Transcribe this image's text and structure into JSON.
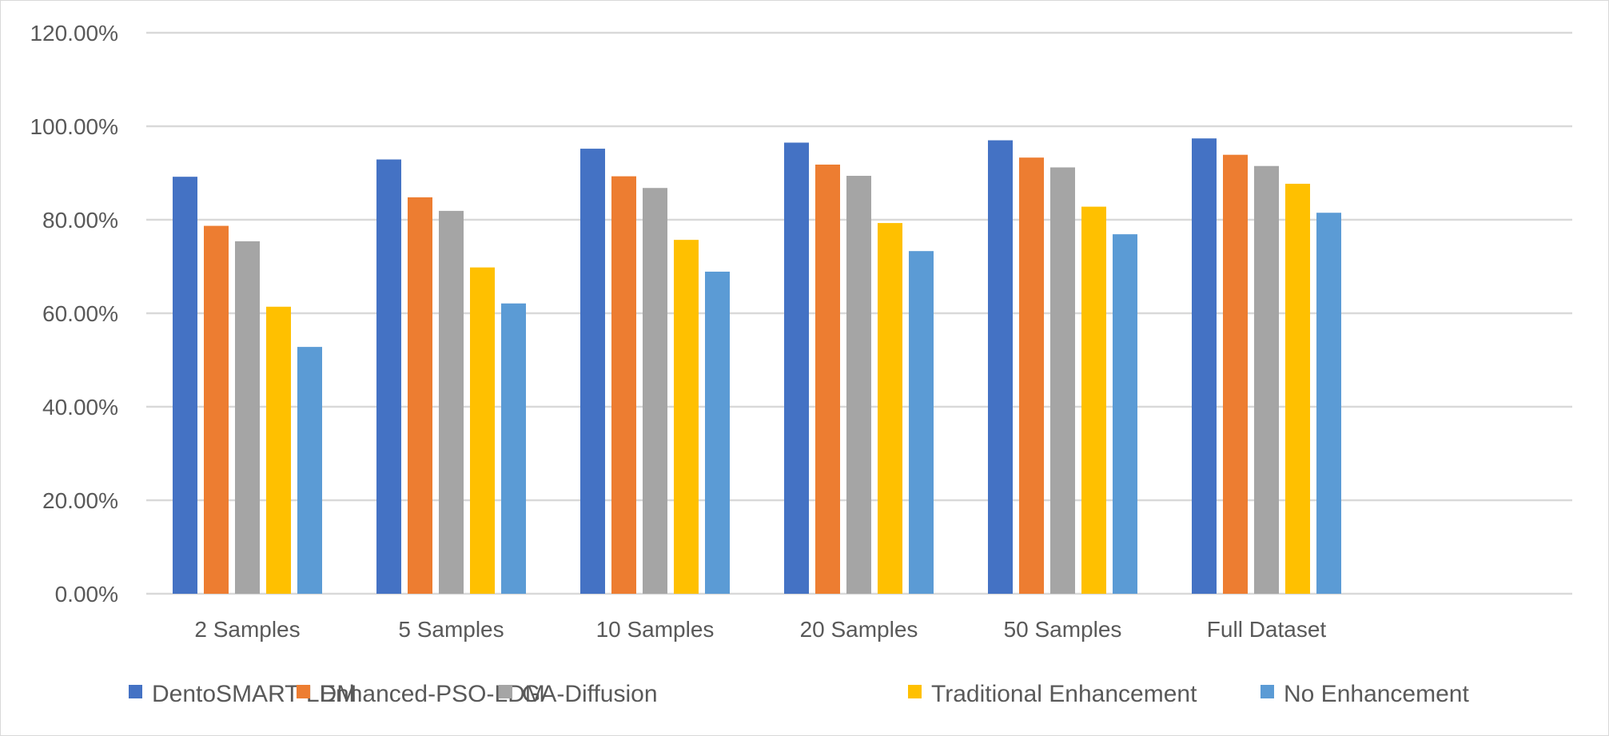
{
  "chart_data": {
    "type": "bar",
    "categories": [
      "2 Samples",
      "5 Samples",
      "10 Samples",
      "20 Samples",
      "50 Samples",
      "Full Dataset"
    ],
    "series": [
      {
        "name": "DentoSMART-LDM",
        "color": "#4472c4",
        "values": [
          89.2,
          92.9,
          95.2,
          96.5,
          97.0,
          97.4
        ]
      },
      {
        "name": "Enhanced-PSO-LDM",
        "color": "#ed7d31",
        "values": [
          78.7,
          84.8,
          89.3,
          91.8,
          93.3,
          93.9
        ]
      },
      {
        "name": "GA-Diffusion",
        "color": "#a5a5a5",
        "values": [
          75.4,
          81.9,
          86.8,
          89.4,
          91.2,
          91.5
        ]
      },
      {
        "name": "Traditional Enhancement",
        "color": "#ffc000",
        "values": [
          61.4,
          69.8,
          75.7,
          79.3,
          82.8,
          87.7
        ]
      },
      {
        "name": "No Enhancement",
        "color": "#5b9bd5",
        "values": [
          52.8,
          62.1,
          68.9,
          73.3,
          76.9,
          81.5
        ]
      }
    ],
    "ylim": [
      0,
      120
    ],
    "yticks": [
      0,
      20,
      40,
      60,
      80,
      100,
      120
    ],
    "ytick_labels": [
      "0.00%",
      "20.00%",
      "40.00%",
      "60.00%",
      "80.00%",
      "100.00%",
      "120.00%"
    ],
    "grid": true,
    "legend_position": "bottom",
    "xlabel": "",
    "ylabel": "",
    "title": ""
  }
}
